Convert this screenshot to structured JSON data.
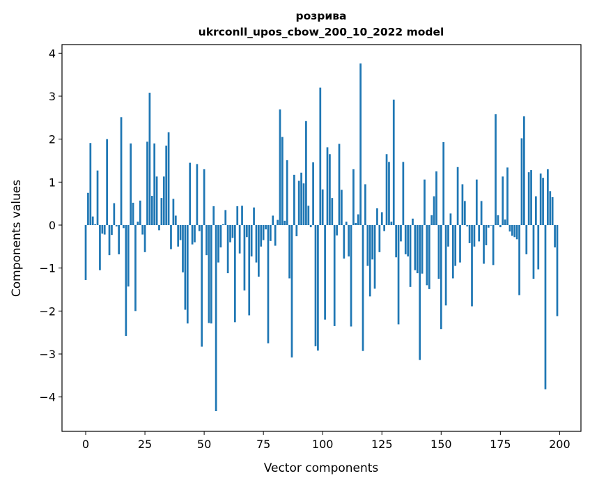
{
  "chart_data": {
    "type": "bar",
    "title": "розрива",
    "subtitle": "ukrconll_upos_cbow_200_10_2022 model",
    "xlabel": "Vector components",
    "ylabel": "Components values",
    "xlim": [
      -10,
      209
    ],
    "ylim": [
      -4.8,
      4.2
    ],
    "xticks": [
      0,
      25,
      50,
      75,
      100,
      125,
      150,
      175,
      200
    ],
    "xtick_labels": [
      "0",
      "25",
      "50",
      "75",
      "100",
      "125",
      "150",
      "175",
      "200"
    ],
    "yticks": [
      -4,
      -3,
      -2,
      -1,
      0,
      1,
      2,
      3,
      4
    ],
    "ytick_labels": [
      "−4",
      "−3",
      "−2",
      "−1",
      "0",
      "1",
      "2",
      "3",
      "4"
    ],
    "grid": false,
    "bar_color": "#1f77b4",
    "x": [
      0,
      1,
      2,
      3,
      4,
      5,
      6,
      7,
      8,
      9,
      10,
      11,
      12,
      13,
      14,
      15,
      16,
      17,
      18,
      19,
      20,
      21,
      22,
      23,
      24,
      25,
      26,
      27,
      28,
      29,
      30,
      31,
      32,
      33,
      34,
      35,
      36,
      37,
      38,
      39,
      40,
      41,
      42,
      43,
      44,
      45,
      46,
      47,
      48,
      49,
      50,
      51,
      52,
      53,
      54,
      55,
      56,
      57,
      58,
      59,
      60,
      61,
      62,
      63,
      64,
      65,
      66,
      67,
      68,
      69,
      70,
      71,
      72,
      73,
      74,
      75,
      76,
      77,
      78,
      79,
      80,
      81,
      82,
      83,
      84,
      85,
      86,
      87,
      88,
      89,
      90,
      91,
      92,
      93,
      94,
      95,
      96,
      97,
      98,
      99,
      100,
      101,
      102,
      103,
      104,
      105,
      106,
      107,
      108,
      109,
      110,
      111,
      112,
      113,
      114,
      115,
      116,
      117,
      118,
      119,
      120,
      121,
      122,
      123,
      124,
      125,
      126,
      127,
      128,
      129,
      130,
      131,
      132,
      133,
      134,
      135,
      136,
      137,
      138,
      139,
      140,
      141,
      142,
      143,
      144,
      145,
      146,
      147,
      148,
      149,
      150,
      151,
      152,
      153,
      154,
      155,
      156,
      157,
      158,
      159,
      160,
      161,
      162,
      163,
      164,
      165,
      166,
      167,
      168,
      169,
      170,
      171,
      172,
      173,
      174,
      175,
      176,
      177,
      178,
      179,
      180,
      181,
      182,
      183,
      184,
      185,
      186,
      187,
      188,
      189,
      190,
      191,
      192,
      193,
      194,
      195,
      196,
      197,
      198,
      199
    ],
    "values": [
      -1.28,
      0.75,
      1.91,
      0.2,
      0.02,
      1.27,
      -1.05,
      -0.2,
      -0.22,
      2.0,
      -0.7,
      -0.23,
      0.51,
      -0.03,
      -0.68,
      2.51,
      -0.07,
      -2.58,
      -1.43,
      1.9,
      0.52,
      -2.0,
      0.08,
      0.57,
      -0.22,
      -0.63,
      1.94,
      3.08,
      0.68,
      1.9,
      1.13,
      -0.12,
      0.63,
      1.13,
      1.85,
      2.16,
      -0.56,
      0.61,
      0.22,
      -0.5,
      -0.35,
      -1.1,
      -1.97,
      -2.29,
      1.45,
      -0.45,
      -0.4,
      1.42,
      -0.14,
      -2.83,
      1.3,
      -0.7,
      -2.28,
      -2.29,
      0.44,
      -4.33,
      -0.87,
      -0.52,
      0.02,
      0.35,
      -1.12,
      -0.4,
      -0.3,
      -2.26,
      0.44,
      -0.66,
      0.45,
      -1.52,
      -0.28,
      -2.1,
      -0.73,
      0.41,
      -0.87,
      -1.2,
      -0.5,
      -0.35,
      -0.1,
      -2.75,
      -0.37,
      0.22,
      -0.48,
      0.12,
      2.69,
      2.05,
      0.1,
      1.51,
      -1.24,
      -3.08,
      1.17,
      -0.26,
      1.03,
      1.22,
      0.97,
      2.42,
      0.45,
      -0.05,
      1.46,
      -2.82,
      -2.92,
      3.2,
      0.83,
      -2.2,
      1.81,
      1.65,
      0.63,
      -2.35,
      -0.24,
      1.89,
      0.82,
      -0.78,
      0.08,
      -0.73,
      -2.36,
      1.3,
      0.05,
      0.25,
      3.76,
      -2.93,
      0.95,
      -0.95,
      -1.66,
      -0.8,
      -1.48,
      0.39,
      -0.63,
      0.3,
      -0.14,
      1.65,
      1.47,
      0.08,
      2.92,
      -0.75,
      -2.31,
      -0.38,
      1.47,
      -0.68,
      -0.73,
      -1.44,
      0.15,
      -1.05,
      -1.12,
      -3.14,
      -1.13,
      1.06,
      -1.4,
      -1.49,
      0.23,
      0.67,
      1.25,
      -1.25,
      -2.42,
      1.93,
      -1.87,
      -0.5,
      0.27,
      -1.24,
      -0.95,
      1.35,
      -0.87,
      0.95,
      0.56,
      -0.03,
      -0.42,
      -1.89,
      -0.5,
      1.06,
      -0.38,
      0.56,
      -0.9,
      -0.47,
      -0.06,
      -0.01,
      -0.93,
      2.58,
      0.23,
      -0.05,
      1.13,
      0.13,
      1.34,
      -0.15,
      -0.25,
      -0.28,
      -0.33,
      -1.63,
      2.02,
      2.53,
      -0.68,
      1.23,
      1.28,
      -1.25,
      0.67,
      -1.03,
      1.2,
      1.1,
      -3.82,
      1.3,
      0.79,
      0.65,
      -0.52,
      -2.12
    ]
  }
}
